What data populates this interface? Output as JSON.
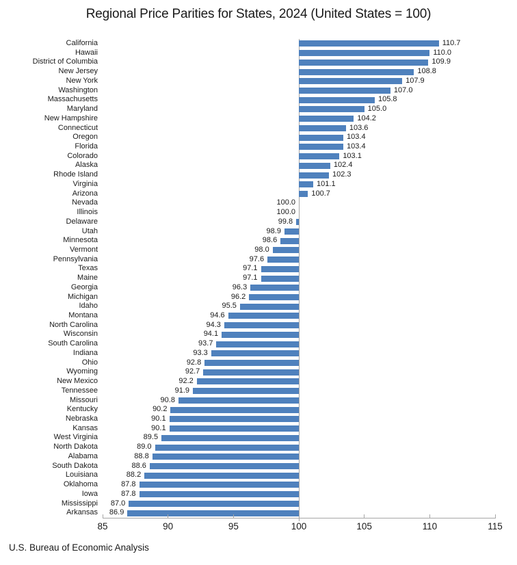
{
  "chart_data": {
    "type": "bar",
    "orientation": "horizontal",
    "title": "Regional Price Parities for States, 2024 (United States = 100)",
    "source": "U.S. Bureau of Economic Analysis",
    "categories": [
      "California",
      "Hawaii",
      "District of Columbia",
      "New Jersey",
      "New York",
      "Washington",
      "Massachusetts",
      "Maryland",
      "New Hampshire",
      "Connecticut",
      "Oregon",
      "Florida",
      "Colorado",
      "Alaska",
      "Rhode Island",
      "Virginia",
      "Arizona",
      "Nevada",
      "Illinois",
      "Delaware",
      "Utah",
      "Minnesota",
      "Vermont",
      "Pennsylvania",
      "Texas",
      "Maine",
      "Georgia",
      "Michigan",
      "Idaho",
      "Montana",
      "North Carolina",
      "Wisconsin",
      "South Carolina",
      "Indiana",
      "Ohio",
      "Wyoming",
      "New Mexico",
      "Tennessee",
      "Missouri",
      "Kentucky",
      "Nebraska",
      "Kansas",
      "West Virginia",
      "North Dakota",
      "Alabama",
      "South Dakota",
      "Louisiana",
      "Oklahoma",
      "Iowa",
      "Mississippi",
      "Arkansas"
    ],
    "values": [
      110.7,
      110.0,
      109.9,
      108.8,
      107.9,
      107.0,
      105.8,
      105.0,
      104.2,
      103.6,
      103.4,
      103.4,
      103.1,
      102.4,
      102.3,
      101.1,
      100.7,
      100.0,
      100.0,
      99.8,
      98.9,
      98.6,
      98.0,
      97.6,
      97.1,
      97.1,
      96.3,
      96.2,
      95.5,
      94.6,
      94.3,
      94.1,
      93.7,
      93.3,
      92.8,
      92.7,
      92.2,
      91.9,
      90.8,
      90.2,
      90.1,
      90.1,
      89.5,
      89.0,
      88.8,
      88.6,
      88.2,
      87.8,
      87.8,
      87.0,
      86.9
    ],
    "baseline": 100,
    "xlim": [
      85,
      115
    ],
    "x_ticks": [
      85,
      90,
      95,
      100,
      105,
      110,
      115
    ],
    "xlabel": "",
    "ylabel": "",
    "grid": false,
    "legend": null,
    "value_labels": "outside-end",
    "bar_color": "#4f81bd",
    "axis_color": "#a6a6a6",
    "text_color": "#1a1a1a"
  }
}
